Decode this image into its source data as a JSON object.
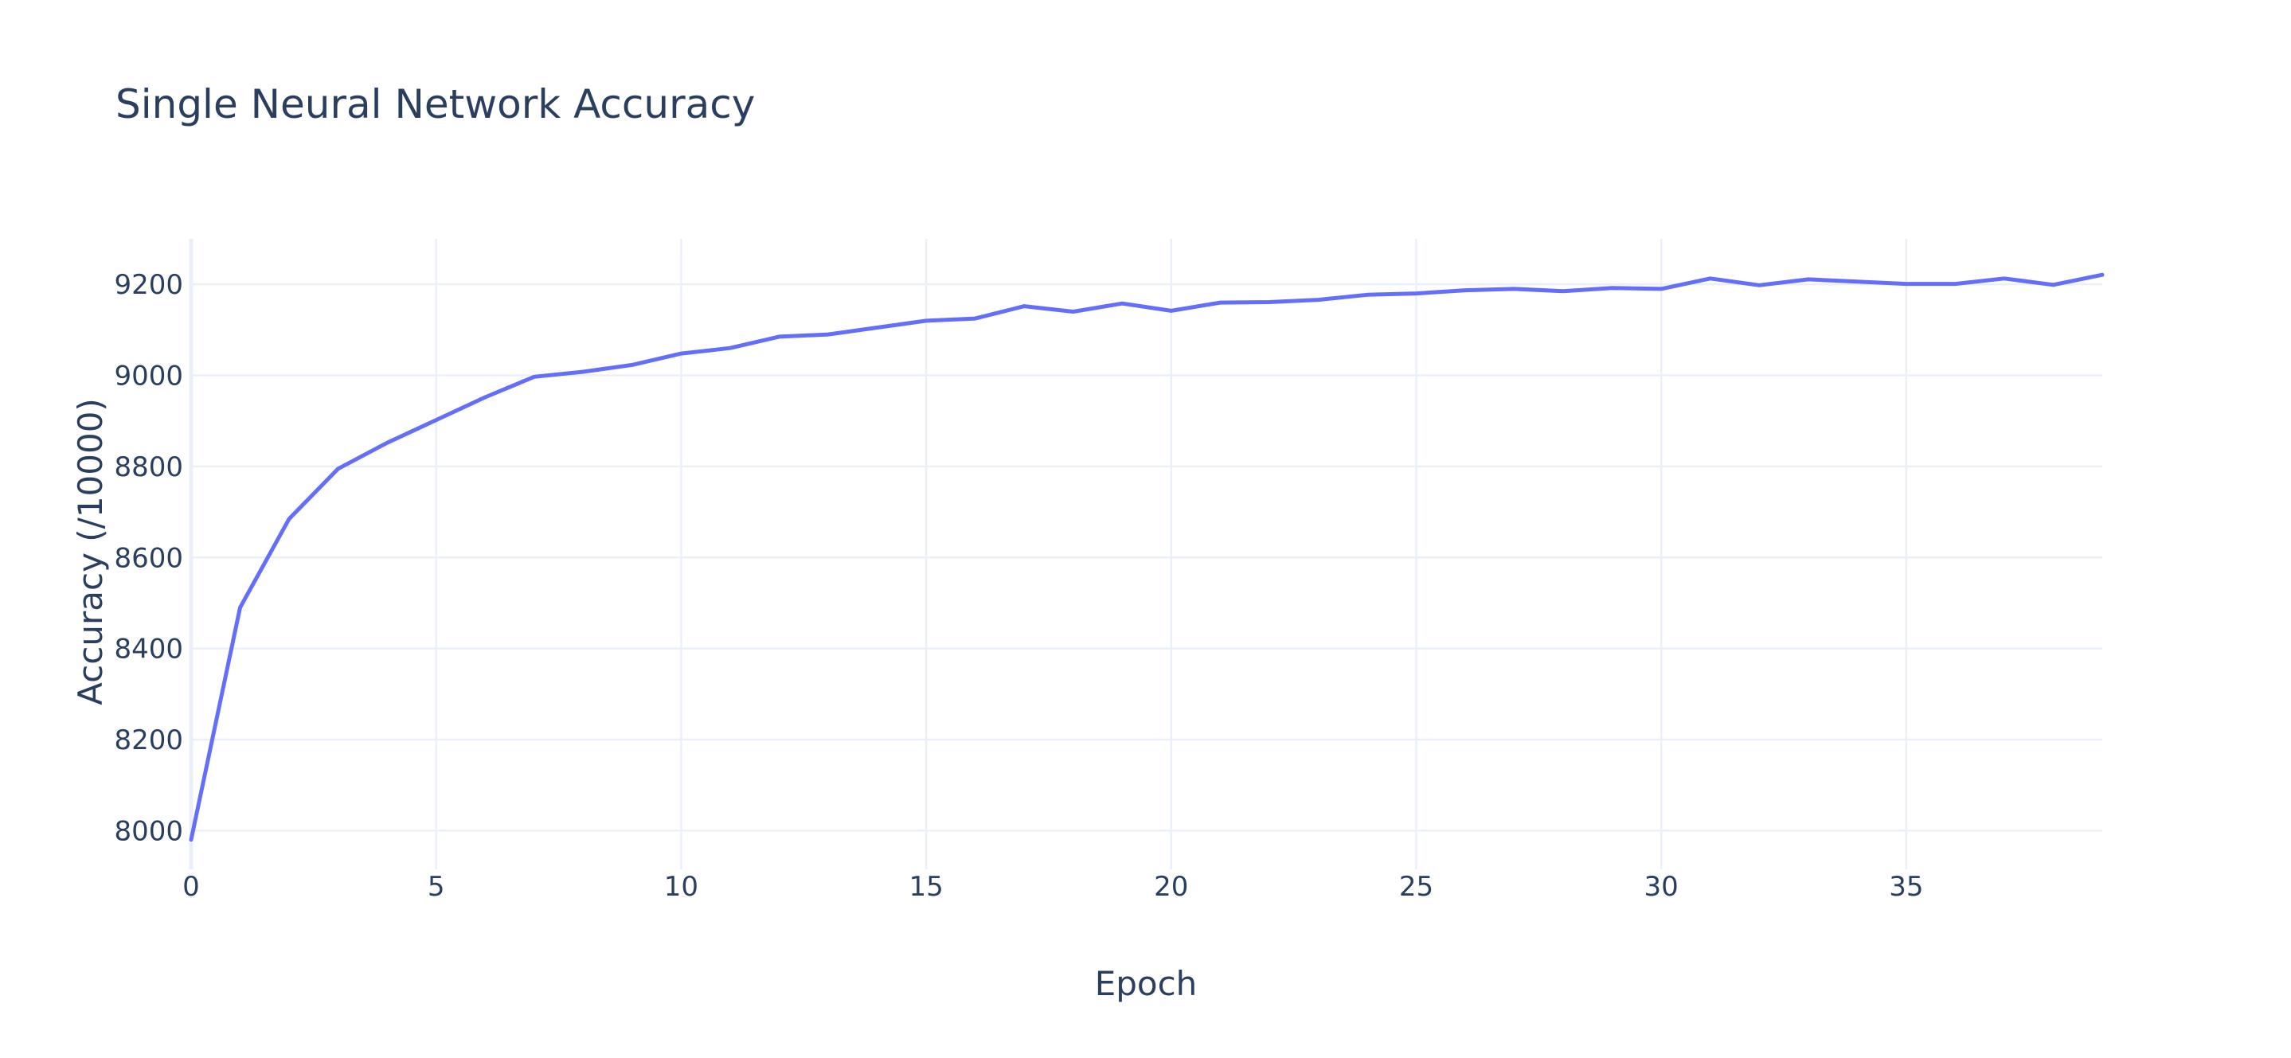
{
  "chart_data": {
    "type": "line",
    "title": "Single Neural Network Accuracy",
    "xlabel": "Epoch",
    "ylabel": "Accuracy (/10000)",
    "xlim": [
      0,
      39
    ],
    "ylim": [
      7915,
      9300
    ],
    "xticks": [
      0,
      5,
      10,
      15,
      20,
      25,
      30,
      35
    ],
    "yticks": [
      8000,
      8200,
      8400,
      8600,
      8800,
      9000,
      9200
    ],
    "grid": true,
    "legend": "none",
    "series": [
      {
        "color": "#636efa",
        "x": [
          0,
          1,
          2,
          3,
          4,
          5,
          6,
          7,
          8,
          9,
          10,
          11,
          12,
          13,
          14,
          15,
          16,
          17,
          18,
          19,
          20,
          21,
          22,
          23,
          24,
          25,
          26,
          27,
          28,
          29,
          30,
          31,
          32,
          33,
          34,
          35,
          36,
          37,
          38,
          39
        ],
        "y": [
          7980,
          8490,
          8685,
          8795,
          8852,
          8902,
          8952,
          8997,
          9008,
          9023,
          9048,
          9060,
          9085,
          9090,
          9105,
          9120,
          9125,
          9152,
          9140,
          9158,
          9142,
          9160,
          9161,
          9166,
          9177,
          9180,
          9187,
          9190,
          9185,
          9192,
          9190,
          9213,
          9198,
          9211,
          9206,
          9201,
          9201,
          9213,
          9199,
          9221
        ]
      }
    ]
  }
}
